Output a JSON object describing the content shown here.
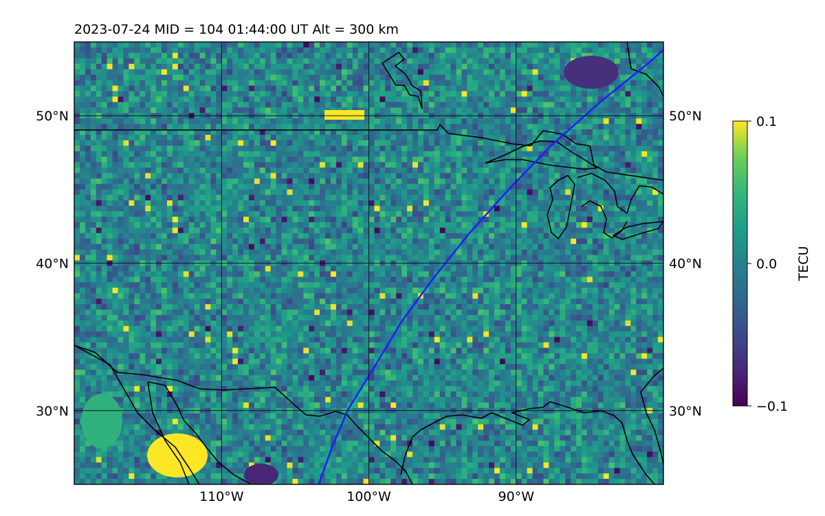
{
  "title": "2023-07-24  MID = 104    01:44:00  UT  Alt = 300 km",
  "map": {
    "lon_range": [
      -120,
      -80
    ],
    "lat_range": [
      25,
      55
    ],
    "gridlines": true,
    "lat_ticks": [
      {
        "value": 30,
        "label": "30°N"
      },
      {
        "value": 40,
        "label": "40°N"
      },
      {
        "value": 50,
        "label": "50°N"
      }
    ],
    "lon_ticks": [
      {
        "value": -110,
        "label": "110°W"
      },
      {
        "value": -100,
        "label": "100°W"
      },
      {
        "value": -90,
        "label": "90°W"
      }
    ],
    "track_color": "#1f1fff",
    "track_points": [
      [
        -103.4,
        25.0
      ],
      [
        -102.5,
        27.5
      ],
      [
        -101.4,
        30.1
      ],
      [
        -99.6,
        33.0
      ],
      [
        -97.8,
        36.0
      ],
      [
        -95.6,
        39.0
      ],
      [
        -93.2,
        42.0
      ],
      [
        -90.5,
        45.0
      ],
      [
        -87.6,
        48.0
      ],
      [
        -84.2,
        51.0
      ],
      [
        -81.1,
        53.5
      ],
      [
        -79.4,
        55.0
      ]
    ]
  },
  "colorbar": {
    "label": "TECU",
    "colormap": "viridis",
    "vmin": -0.1,
    "vmax": 0.1,
    "ticks": [
      {
        "value": 0.1,
        "label": "0.1"
      },
      {
        "value": 0.0,
        "label": "0.0"
      },
      {
        "value": -0.1,
        "label": "−0.1"
      }
    ]
  }
}
